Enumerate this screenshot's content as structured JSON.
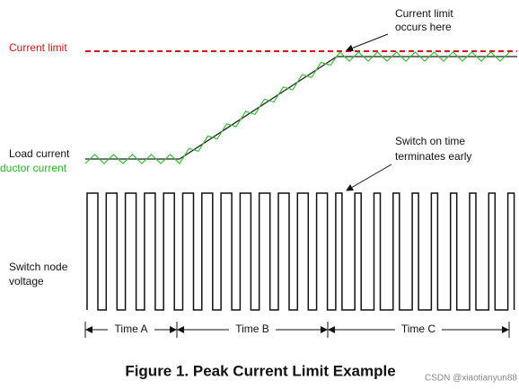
{
  "labels": {
    "current_limit": "Current limit",
    "current_limit_note": [
      "Current limit",
      "occurs here"
    ],
    "load_current": "Load current",
    "inductor_current": "ductor current",
    "switch_note": [
      "Switch on time",
      "terminates early"
    ],
    "switch_node": [
      "Switch node",
      "voltage"
    ]
  },
  "time_segments": [
    "Time A",
    "Time B",
    "Time C"
  ],
  "caption": "Figure 1. Peak Current Limit Example",
  "watermark": "CSDN @xiaotianyun88"
}
